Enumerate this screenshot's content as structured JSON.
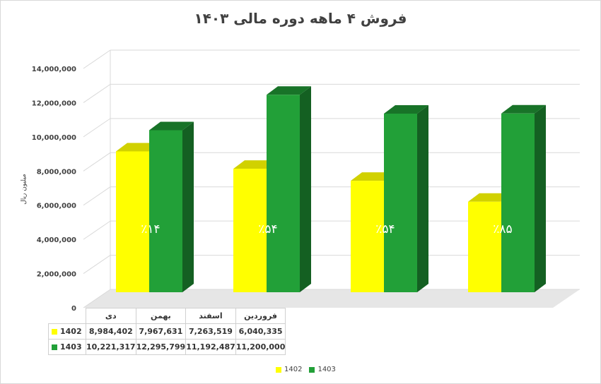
{
  "title": "فروش ۴ ماهه دوره مالی ۱۴۰۳",
  "chart_data": {
    "type": "bar",
    "title": "فروش ۴ ماهه دوره مالی ۱۴۰۳",
    "ylabel": "میلیون ریال",
    "ylim": [
      0,
      14000000
    ],
    "y_ticks": [
      "0",
      "2,000,000",
      "4,000,000",
      "6,000,000",
      "8,000,000",
      "10,000,000",
      "12,000,000",
      "14,000,000"
    ],
    "categories": [
      "دی",
      "بهمن",
      "اسفند",
      "فروردین"
    ],
    "series": [
      {
        "name": "1402",
        "color": "#ffff00",
        "values": [
          8984402,
          7967631,
          7263519,
          6040335
        ],
        "labels": [
          "8,984,402",
          "7,967,631",
          "7,263,519",
          "6,040,335"
        ]
      },
      {
        "name": "1403",
        "color": "#22a038",
        "values": [
          10221317,
          12295799,
          11192487,
          11200000
        ],
        "labels": [
          "10,221,317",
          "12,295,799",
          "11,192,487",
          "11,200,000"
        ]
      }
    ],
    "growth_labels": [
      "٪۱۴",
      "٪۵۴",
      "٪۵۴",
      "٪۸۵"
    ],
    "legend_position": "bottom",
    "grid": true,
    "data_table": true
  }
}
